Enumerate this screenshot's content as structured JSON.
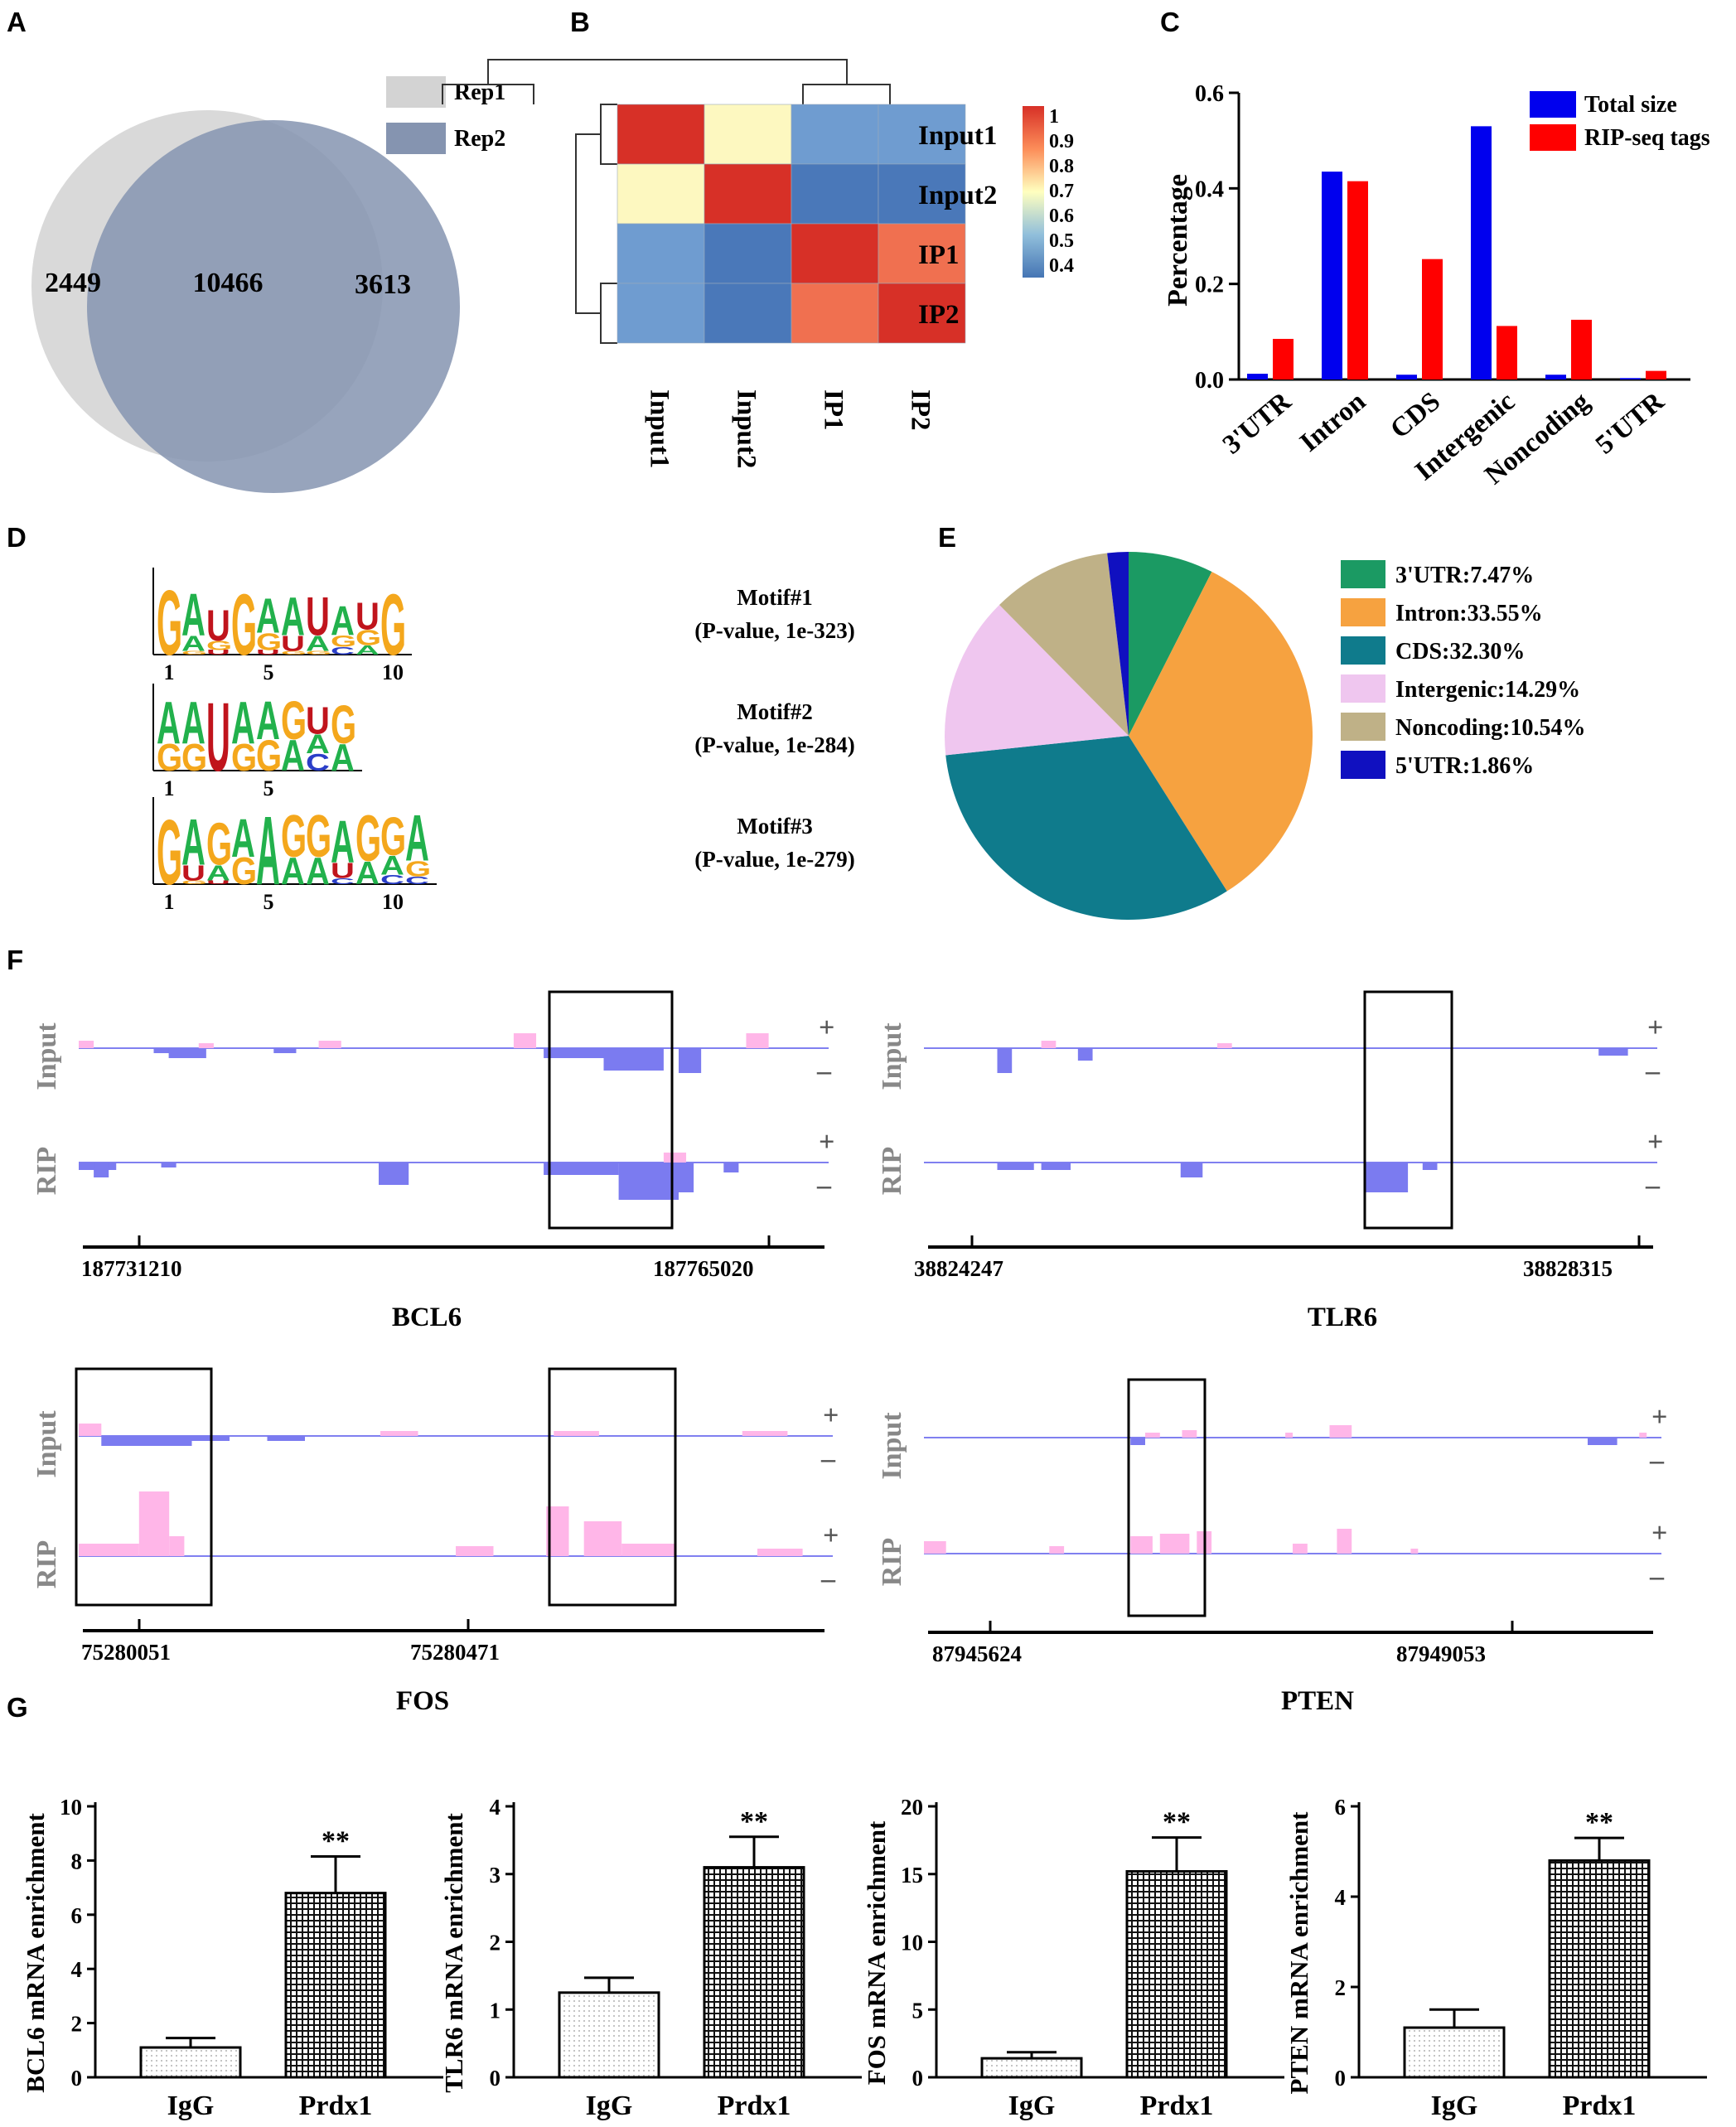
{
  "panel_labels": [
    "A",
    "B",
    "C",
    "D",
    "E",
    "F",
    "G"
  ],
  "colors": {
    "rep1": "#d3d3d3",
    "rep2": "#8594b0",
    "blue": "#0000ee",
    "red": "#ff0000",
    "trackPlus": "#ffb6e8",
    "trackMinus": "#7b7bf0",
    "baseline": "#8080f0",
    "hmHigh": "#d73027",
    "hmMid": "#ffffbf",
    "hmLow": "#4575b4"
  },
  "chart_data": [
    {
      "panel": "A",
      "type": "venn",
      "title": "",
      "legend": [
        "Rep1",
        "Rep2"
      ],
      "values": {
        "rep1_only": "2449",
        "shared": "10466",
        "rep2_only": "3613"
      }
    },
    {
      "panel": "B",
      "type": "heatmap",
      "rows": [
        "Input1",
        "Input2",
        "IP1",
        "IP2"
      ],
      "columns": [
        "Input1",
        "Input2",
        "IP1",
        "IP2"
      ],
      "values": [
        [
          1.0,
          0.72,
          0.45,
          0.45
        ],
        [
          0.72,
          1.0,
          0.4,
          0.4
        ],
        [
          0.45,
          0.4,
          1.0,
          0.92
        ],
        [
          0.45,
          0.4,
          0.92,
          1.0
        ]
      ],
      "colorbar_ticks": [
        "1",
        "0.9",
        "0.8",
        "0.7",
        "0.6",
        "0.5",
        "0.4"
      ],
      "range": [
        0.4,
        1.0
      ]
    },
    {
      "panel": "C",
      "type": "bar",
      "ylabel": "Percentage",
      "categories": [
        "3'UTR",
        "Intron",
        "CDS",
        "Intergenic",
        "Noncoding",
        "5'UTR"
      ],
      "series": [
        {
          "name": "Total size",
          "values": [
            0.012,
            0.435,
            0.01,
            0.53,
            0.01,
            0.003
          ]
        },
        {
          "name": "RIP-seq tags",
          "values": [
            0.085,
            0.415,
            0.252,
            0.112,
            0.125,
            0.018
          ]
        }
      ],
      "ylim": [
        0,
        0.6
      ],
      "yticks": [
        "0.0",
        "0.2",
        "0.4",
        "0.6"
      ]
    },
    {
      "panel": "D",
      "type": "sequence-logo",
      "motifs": [
        {
          "name": "Motif#1",
          "pvalue": "(P-value, 1e-323)",
          "ticks": [
            "1",
            "5",
            "10"
          ],
          "columns": [
            [
              [
                "G",
                0.85
              ]
            ],
            [
              [
                "A",
                0.55
              ],
              [
                "A",
                0.2
              ],
              [
                "G",
                0.05
              ]
            ],
            [
              [
                "U",
                0.4
              ],
              [
                "G",
                0.12
              ],
              [
                "U",
                0.06
              ]
            ],
            [
              [
                "G",
                0.8
              ]
            ],
            [
              [
                "A",
                0.45
              ],
              [
                "G",
                0.22
              ],
              [
                "U",
                0.06
              ]
            ],
            [
              [
                "A",
                0.5
              ],
              [
                "U",
                0.2
              ],
              [
                "G",
                0.05
              ]
            ],
            [
              [
                "U",
                0.5
              ],
              [
                "A",
                0.2
              ],
              [
                "G",
                0.05
              ]
            ],
            [
              [
                "A",
                0.38
              ],
              [
                "G",
                0.15
              ],
              [
                "C",
                0.1
              ]
            ],
            [
              [
                "U",
                0.35
              ],
              [
                "G",
                0.2
              ],
              [
                "A",
                0.12
              ]
            ],
            [
              [
                "G",
                0.8
              ]
            ]
          ]
        },
        {
          "name": "Motif#2",
          "pvalue": "(P-value, 1e-284)",
          "ticks": [
            "1",
            "5"
          ],
          "columns": [
            [
              [
                "A",
                0.55
              ],
              [
                "G",
                0.35
              ]
            ],
            [
              [
                "A",
                0.55
              ],
              [
                "G",
                0.35
              ]
            ],
            [
              [
                "U",
                0.9
              ]
            ],
            [
              [
                "A",
                0.55
              ],
              [
                "G",
                0.35
              ]
            ],
            [
              [
                "A",
                0.5
              ],
              [
                "G",
                0.4
              ]
            ],
            [
              [
                "G",
                0.5
              ],
              [
                "A",
                0.4
              ]
            ],
            [
              [
                "U",
                0.35
              ],
              [
                "C",
                0.22
              ],
              [
                "A",
                0.25
              ]
            ],
            [
              [
                "G",
                0.5
              ],
              [
                "A",
                0.35
              ]
            ]
          ]
        },
        {
          "name": "Motif#3",
          "pvalue": "(P-value, 1e-279)",
          "ticks": [
            "1",
            "5",
            "10"
          ],
          "columns": [
            [
              [
                "G",
                0.85
              ]
            ],
            [
              [
                "A",
                0.6
              ],
              [
                "U",
                0.2
              ],
              [
                "G",
                0.05
              ]
            ],
            [
              [
                "G",
                0.55
              ],
              [
                "A",
                0.2
              ],
              [
                "U",
                0.05
              ]
            ],
            [
              [
                "A",
                0.5
              ],
              [
                "G",
                0.35
              ]
            ],
            [
              [
                "A",
                0.9
              ]
            ],
            [
              [
                "G",
                0.55
              ],
              [
                "A",
                0.35
              ]
            ],
            [
              [
                "G",
                0.55
              ],
              [
                "A",
                0.35
              ]
            ],
            [
              [
                "A",
                0.55
              ],
              [
                "U",
                0.2
              ],
              [
                "C",
                0.08
              ]
            ],
            [
              [
                "G",
                0.6
              ],
              [
                "A",
                0.3
              ]
            ],
            [
              [
                "G",
                0.5
              ],
              [
                "A",
                0.25
              ],
              [
                "C",
                0.12
              ]
            ],
            [
              [
                "A",
                0.6
              ],
              [
                "G",
                0.2
              ],
              [
                "C",
                0.1
              ]
            ]
          ]
        }
      ]
    },
    {
      "panel": "E",
      "type": "pie",
      "labels": [
        "3'UTR:7.47%",
        "Intron:33.55%",
        "CDS:32.30%",
        "Intergenic:14.29%",
        "Noncoding:10.54%",
        "5'UTR:1.86%"
      ],
      "values": [
        7.47,
        33.55,
        32.3,
        14.29,
        10.54,
        1.86
      ],
      "colors": [
        "#1b9a63",
        "#f6a240",
        "#0f7b8c",
        "#efc6ef",
        "#bfb187",
        "#1010c0"
      ]
    },
    {
      "panel": "F",
      "type": "genome-tracks",
      "tracks": [
        {
          "gene": "BCL6",
          "row_labels": [
            "Input",
            "RIP"
          ],
          "coords": [
            "187731210",
            "187765020"
          ],
          "input": [
            [
              0.0,
              0.02,
              3
            ],
            [
              0.1,
              0.03,
              -2
            ],
            [
              0.12,
              0.05,
              -4
            ],
            [
              0.16,
              0.02,
              2
            ],
            [
              0.26,
              0.03,
              -2
            ],
            [
              0.32,
              0.03,
              3
            ],
            [
              0.58,
              0.03,
              6
            ],
            [
              0.62,
              0.1,
              -4
            ],
            [
              0.7,
              0.08,
              -9
            ],
            [
              0.8,
              0.03,
              -10
            ],
            [
              0.89,
              0.03,
              6
            ]
          ],
          "rip": [
            [
              0.0,
              0.05,
              -3
            ],
            [
              0.02,
              0.02,
              -6
            ],
            [
              0.11,
              0.02,
              -2
            ],
            [
              0.4,
              0.04,
              -9
            ],
            [
              0.62,
              0.1,
              -5
            ],
            [
              0.72,
              0.08,
              -15
            ],
            [
              0.78,
              0.03,
              4
            ],
            [
              0.8,
              0.02,
              -12
            ],
            [
              0.86,
              0.02,
              -4
            ]
          ]
        },
        {
          "gene": "TLR6",
          "row_labels": [
            "Input",
            "RIP"
          ],
          "coords": [
            "38824247",
            "38828315"
          ],
          "input": [
            [
              0.1,
              0.02,
              -10
            ],
            [
              0.16,
              0.02,
              3
            ],
            [
              0.21,
              0.02,
              -5
            ],
            [
              0.4,
              0.02,
              2
            ],
            [
              0.92,
              0.04,
              -3
            ]
          ],
          "rip": [
            [
              0.1,
              0.05,
              -3
            ],
            [
              0.16,
              0.04,
              -3
            ],
            [
              0.35,
              0.03,
              -6
            ],
            [
              0.6,
              0.06,
              -12
            ],
            [
              0.68,
              0.02,
              -3
            ]
          ]
        },
        {
          "gene": "FOS",
          "row_labels": [
            "Input",
            "RIP"
          ],
          "coords": [
            "75280051",
            "75280471"
          ],
          "input": [
            [
              0.0,
              0.03,
              5
            ],
            [
              0.03,
              0.12,
              -4
            ],
            [
              0.15,
              0.05,
              -2
            ],
            [
              0.25,
              0.05,
              -2
            ],
            [
              0.4,
              0.05,
              2
            ],
            [
              0.63,
              0.06,
              2
            ],
            [
              0.88,
              0.06,
              2
            ]
          ],
          "rip": [
            [
              0.0,
              0.08,
              5
            ],
            [
              0.08,
              0.04,
              26
            ],
            [
              0.12,
              0.02,
              8
            ],
            [
              0.5,
              0.05,
              4
            ],
            [
              0.62,
              0.03,
              20
            ],
            [
              0.67,
              0.05,
              14
            ],
            [
              0.72,
              0.07,
              5
            ],
            [
              0.9,
              0.06,
              3
            ]
          ]
        },
        {
          "gene": "PTEN",
          "row_labels": [
            "Input",
            "RIP"
          ],
          "coords": [
            "87945624",
            "87949053"
          ],
          "input": [
            [
              0.28,
              0.02,
              -3
            ],
            [
              0.3,
              0.02,
              2
            ],
            [
              0.35,
              0.02,
              3
            ],
            [
              0.49,
              0.01,
              2
            ],
            [
              0.55,
              0.03,
              5
            ],
            [
              0.9,
              0.04,
              -3
            ],
            [
              0.97,
              0.01,
              2
            ]
          ],
          "rip": [
            [
              0.0,
              0.03,
              5
            ],
            [
              0.17,
              0.02,
              3
            ],
            [
              0.28,
              0.03,
              7
            ],
            [
              0.32,
              0.04,
              8
            ],
            [
              0.37,
              0.02,
              9
            ],
            [
              0.5,
              0.02,
              4
            ],
            [
              0.56,
              0.02,
              10
            ],
            [
              0.66,
              0.01,
              2
            ]
          ]
        }
      ]
    },
    {
      "panel": "G",
      "type": "bar",
      "charts": [
        {
          "ylabel": "BCL6 mRNA enrichment",
          "categories": [
            "IgG",
            "Prdx1"
          ],
          "values": [
            1.1,
            6.8
          ],
          "errors": [
            0.35,
            1.35
          ],
          "ylim": [
            0,
            10
          ],
          "yticks": [
            "0",
            "2",
            "4",
            "6",
            "8",
            "10"
          ],
          "sig": "**"
        },
        {
          "ylabel": "TLR6 mRNA enrichment",
          "categories": [
            "IgG",
            "Prdx1"
          ],
          "values": [
            1.25,
            3.1
          ],
          "errors": [
            0.22,
            0.45
          ],
          "ylim": [
            0,
            4
          ],
          "yticks": [
            "0",
            "1",
            "2",
            "3",
            "4"
          ],
          "sig": "**"
        },
        {
          "ylabel": "FOS mRNA enrichment",
          "categories": [
            "IgG",
            "Prdx1"
          ],
          "values": [
            1.4,
            15.2
          ],
          "errors": [
            0.45,
            2.5
          ],
          "ylim": [
            0,
            20
          ],
          "yticks": [
            "0",
            "5",
            "10",
            "15",
            "20"
          ],
          "sig": "**"
        },
        {
          "ylabel": "PTEN mRNA enrichment",
          "categories": [
            "IgG",
            "Prdx1"
          ],
          "values": [
            1.1,
            4.8
          ],
          "errors": [
            0.4,
            0.5
          ],
          "ylim": [
            0,
            6
          ],
          "yticks": [
            "0",
            "2",
            "4",
            "6"
          ],
          "sig": "**"
        }
      ]
    }
  ]
}
